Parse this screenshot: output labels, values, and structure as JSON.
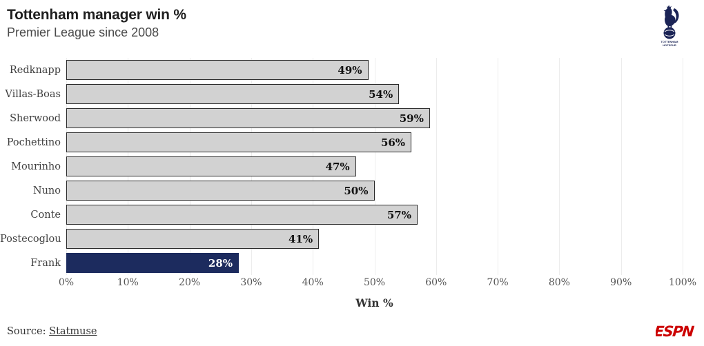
{
  "header": {
    "title": "Tottenham manager win %",
    "subtitle": "Premier League since 2008",
    "crest": {
      "icon": "tottenham-hotspur-crest",
      "line1": "TOTTENHAM",
      "line2": "HOTSPUR",
      "color": "#1b2456"
    }
  },
  "chart_data": {
    "type": "bar",
    "orientation": "horizontal",
    "title": "Tottenham manager win %",
    "subtitle": "Premier League since 2008",
    "categories": [
      "Redknapp",
      "Villas-Boas",
      "Sherwood",
      "Pochettino",
      "Mourinho",
      "Nuno",
      "Conte",
      "Postecoglou",
      "Frank"
    ],
    "values": [
      49,
      54,
      59,
      56,
      47,
      50,
      57,
      41,
      28
    ],
    "value_labels": [
      "49%",
      "54%",
      "59%",
      "56%",
      "47%",
      "50%",
      "57%",
      "41%",
      "28%"
    ],
    "highlight_index": 8,
    "xlabel": "Win %",
    "ylabel": "",
    "xlim": [
      0,
      100
    ],
    "x_ticks": [
      "0%",
      "10%",
      "20%",
      "30%",
      "40%",
      "50%",
      "60%",
      "70%",
      "80%",
      "90%",
      "100%"
    ],
    "grid": "vertical",
    "legend": "none",
    "colors": {
      "bar_fill": "#d2d2d2",
      "bar_border": "#2b2b2b",
      "highlight_fill": "#1c2b5e",
      "highlight_text": "#ffffff",
      "gridline": "#ececec"
    }
  },
  "footer": {
    "source_prefix": "Source: ",
    "source_link": "Statmuse",
    "brand": "ESPN",
    "brand_color": "#cc0000"
  }
}
